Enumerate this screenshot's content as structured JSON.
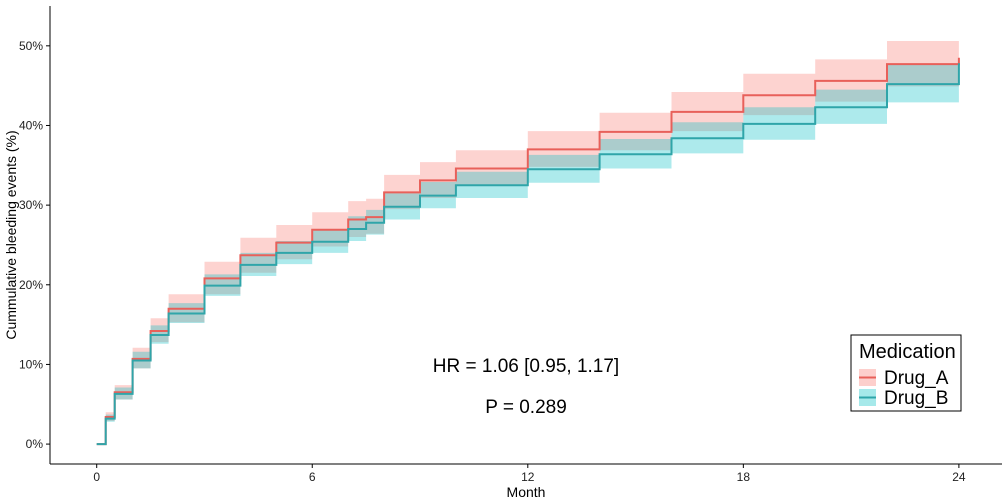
{
  "colors": {
    "drug_a_line": "#E8605A",
    "drug_a_band": "#F8766D",
    "drug_b_line": "#2FA5A9",
    "drug_b_band": "#00BFC4",
    "axis": "#000000"
  },
  "annotation": {
    "hr_text": "HR = 1.06 [0.95, 1.17]",
    "p_text": "P = 0.289"
  },
  "legend": {
    "title": "Medication",
    "items": [
      "Drug_A",
      "Drug_B"
    ]
  },
  "chart_data": {
    "type": "line",
    "title": "",
    "xlabel": "Month",
    "ylabel": "Cummulative bleeding events (%)",
    "xlim": [
      -1.3,
      25.2
    ],
    "ylim": [
      -2.5,
      55
    ],
    "x_ticks": [
      0,
      6,
      12,
      18,
      24
    ],
    "x_tick_labels": [
      "0",
      "6",
      "12",
      "18",
      "24"
    ],
    "y_ticks": [
      0,
      10,
      20,
      30,
      40,
      50
    ],
    "y_tick_labels": [
      "0%",
      "10%",
      "20%",
      "30%",
      "40%",
      "50%"
    ],
    "grid": false,
    "legend_position": "bottom-right",
    "x": [
      0,
      0.25,
      0.5,
      1,
      1.5,
      2,
      3,
      4,
      5,
      6,
      7,
      7.5,
      8,
      9,
      10,
      12,
      14,
      16,
      18,
      20,
      22,
      24
    ],
    "series": [
      {
        "name": "Drug_A",
        "values": [
          0,
          3.4,
          6.5,
          10.7,
          14.2,
          17.0,
          20.8,
          23.7,
          25.3,
          26.9,
          28.2,
          28.5,
          31.6,
          33.1,
          34.6,
          37.0,
          39.2,
          41.7,
          43.8,
          45.6,
          47.7,
          48.5
        ],
        "lower": [
          0,
          2.9,
          5.6,
          9.5,
          12.8,
          15.3,
          18.8,
          21.5,
          23.2,
          24.8,
          26.0,
          26.4,
          29.5,
          30.9,
          32.4,
          34.8,
          36.9,
          39.3,
          41.3,
          43.0,
          44.9,
          45.2
        ],
        "upper": [
          0,
          4.0,
          7.4,
          12.1,
          15.8,
          18.8,
          22.9,
          25.9,
          27.5,
          29.1,
          30.5,
          30.8,
          33.8,
          35.4,
          36.9,
          39.3,
          41.6,
          44.2,
          46.5,
          48.3,
          50.6,
          52.0
        ]
      },
      {
        "name": "Drug_B",
        "values": [
          0,
          3.2,
          6.3,
          10.5,
          13.7,
          16.4,
          19.9,
          22.5,
          24.0,
          25.4,
          27.0,
          27.8,
          29.8,
          31.2,
          32.5,
          34.5,
          36.4,
          38.4,
          40.2,
          42.3,
          45.2,
          47.8
        ],
        "lower": [
          0,
          2.8,
          5.6,
          9.5,
          12.6,
          15.2,
          18.6,
          21.1,
          22.6,
          24.0,
          25.5,
          26.3,
          28.2,
          29.6,
          30.9,
          32.8,
          34.6,
          36.5,
          38.2,
          40.2,
          42.9,
          45.0
        ],
        "upper": [
          0,
          3.7,
          7.1,
          11.6,
          14.9,
          17.7,
          21.3,
          24.0,
          25.5,
          26.9,
          28.6,
          29.4,
          31.5,
          32.9,
          34.2,
          36.3,
          38.3,
          40.4,
          42.3,
          44.5,
          47.6,
          50.4
        ]
      }
    ]
  }
}
